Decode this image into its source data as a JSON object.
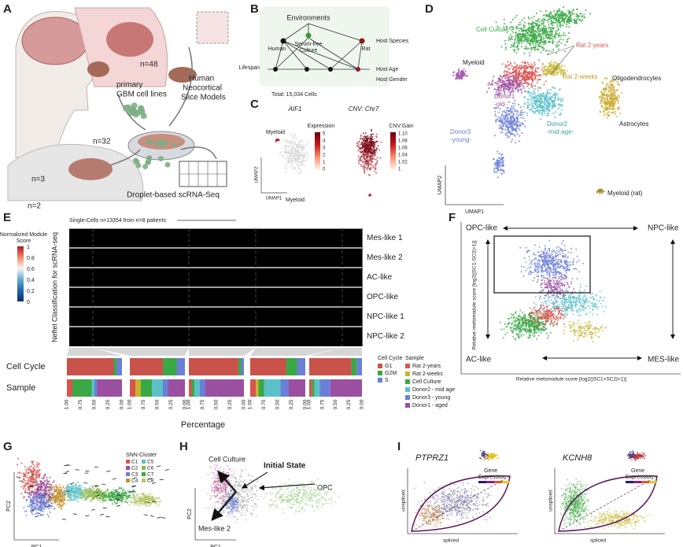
{
  "panels": {
    "A": {
      "label": "A",
      "counts": [
        "n=3",
        "n=48",
        "n=32",
        "n=2"
      ],
      "cell_lines": [
        "primary",
        "GBM cell lines"
      ],
      "slice_models": [
        "Human",
        "Neocortical",
        "Slice Models"
      ],
      "method": "Droplet-based scRNA-Seq"
    },
    "B": {
      "label": "B",
      "root": "Environments",
      "culture": [
        "Serum-free",
        "Culture"
      ],
      "human": "Human",
      "rat": "Rat",
      "lifespan": "Lifespan",
      "rows": [
        "Host Species",
        "Host Age",
        "Host Gender"
      ],
      "total": "Total: 15,034 Cells"
    },
    "C": {
      "label": "C",
      "gene": "AIF1",
      "cnv": "CNV: Chr7",
      "expression": "Expression",
      "expression_ticks": [
        "5",
        "4",
        "3",
        "2",
        "1",
        "0"
      ],
      "cnv_gain": "CNV:Gain",
      "cnv_ticks": [
        "1.10",
        "1.08",
        "1.06",
        "1.04",
        "1.02",
        "1"
      ],
      "myeloid": [
        "Myeloid",
        "Myeloid"
      ],
      "y_axis": "UMAP2",
      "x_axis": "UMAP1"
    },
    "D": {
      "label": "D",
      "clusters": [
        "Cell Culture",
        "Rat 2-years",
        "Myeloid",
        "Rat 2-weeks",
        "Oligodendrocytes",
        "Donor1",
        "-old-",
        "Donor2",
        "-mid-age-",
        "Donor3",
        "-young-",
        "Astrocytes",
        "Myeloid (rat)"
      ],
      "y_axis": "UMAP2",
      "x_axis": "UMAP1"
    },
    "E": {
      "label": "E",
      "header": "Single-Cells n=13354 from n=8 patients",
      "colorbar_title": [
        "Normalized Module",
        "Score"
      ],
      "colorbar_ticks": [
        "1",
        "0.8",
        "0.6",
        "0.4",
        "0.2",
        "0"
      ],
      "y_axis": "Neftel Classification for scRNA-seq",
      "rows": [
        "Mes-like 1",
        "Mes-like 2",
        "AC-like",
        "OPC-like",
        "NPC-like 1",
        "NPC-like 2"
      ],
      "tracks": [
        "Cell Cycle",
        "Sample"
      ],
      "cell_cycle_title": "Cell Cycle",
      "cell_cycle": [
        "G1",
        "G2M",
        "S"
      ],
      "sample_title": "Sample",
      "samples": [
        "Rat 2-years",
        "Rat 2-weeks",
        "Cell Culture",
        "Donor2 - mid age",
        "Donor3 - young",
        "Donor1 - aged"
      ],
      "x_ticks": [
        "1.00",
        "0.75",
        "0.50",
        "0.25",
        "0.00"
      ],
      "x_axis": "Percentage"
    },
    "F": {
      "label": "F",
      "corners": [
        "OPC-like",
        "NPC-like",
        "AC-like",
        "MES-like"
      ],
      "y_axis": "Relative metsmodule score [log2(|SC1-SC2|+1)]",
      "x_axis": "Relative metsmodule score [log2(|SC1+SC2|+1)]"
    },
    "G": {
      "label": "G",
      "legend_title": "SNN-Cluster",
      "clusters": [
        "C1",
        "C2",
        "C3",
        "C4",
        "C5",
        "C6",
        "C7",
        "C8"
      ],
      "y_axis": "PC2",
      "x_axis": "PC1"
    },
    "H": {
      "label": "H",
      "annotations": [
        "Cell Culture",
        "Initial State",
        "OPC",
        "Mes-like 2"
      ],
      "y_axis": "PC2",
      "x_axis": "PC1"
    },
    "I": {
      "label": "I",
      "genes": [
        "PTPRZ1",
        "KCNH8"
      ],
      "inset": [
        "Gene",
        "Expression"
      ],
      "y_axis": "unspliced",
      "x_axis": "spliced"
    }
  }
}
